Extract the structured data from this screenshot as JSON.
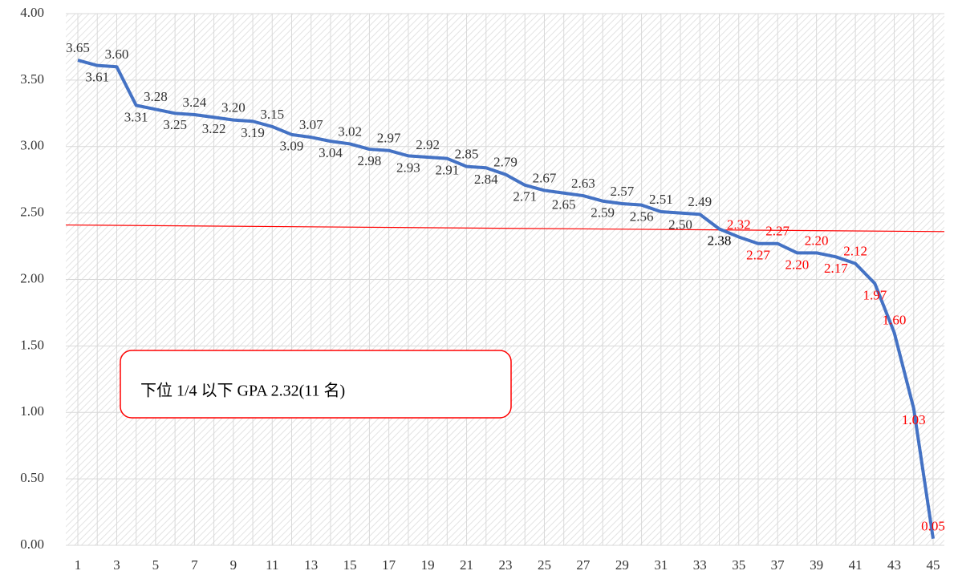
{
  "chart_data": {
    "type": "line",
    "categories": [
      "1",
      null,
      "3",
      null,
      "5",
      null,
      "7",
      null,
      "9",
      null,
      "11",
      null,
      "13",
      null,
      "15",
      null,
      "17",
      null,
      "19",
      null,
      "21",
      null,
      "23",
      null,
      "25",
      null,
      "27",
      null,
      "29",
      null,
      "31",
      null,
      "33",
      null,
      "35",
      null,
      "37",
      null,
      "39",
      null,
      "41",
      null,
      "43",
      null,
      "45"
    ],
    "series": [
      {
        "color": "#4472c4",
        "values": [
          3.65,
          3.61,
          3.6,
          3.31,
          3.28,
          3.25,
          3.24,
          3.22,
          3.2,
          3.19,
          3.15,
          3.09,
          3.07,
          3.04,
          3.02,
          2.98,
          2.97,
          2.93,
          2.92,
          2.91,
          2.85,
          2.84,
          2.79,
          2.71,
          2.67,
          2.65,
          2.63,
          2.59,
          2.57,
          2.56,
          2.51,
          2.5,
          2.49,
          2.38,
          2.32,
          2.27,
          2.27,
          2.2,
          2.2,
          2.17,
          2.12,
          1.97,
          1.6,
          1.03,
          0.05
        ],
        "value_labels": [
          "3.65",
          "3.61",
          "3.60",
          "3.31",
          "3.28",
          "3.25",
          "3.24",
          "3.22",
          "3.20",
          "3.19",
          "3.15",
          "3.09",
          "3.07",
          "3.04",
          "3.02",
          "2.98",
          "2.97",
          "2.93",
          "2.92",
          "2.91",
          "2.85",
          "2.84",
          "2.79",
          "2.71",
          "2.67",
          "2.65",
          "2.63",
          "2.59",
          "2.57",
          "2.56",
          "2.51",
          "2.50",
          "2.49",
          "2.38",
          "2.32",
          "2.27",
          "2.27",
          "2.20",
          "2.20",
          "2.17",
          "2.12",
          "1.97",
          "1.60",
          "1.03",
          "0.05"
        ],
        "value_label_colors": [
          "#333333",
          "#333333",
          "#333333",
          "#333333",
          "#333333",
          "#333333",
          "#333333",
          "#333333",
          "#333333",
          "#333333",
          "#333333",
          "#333333",
          "#333333",
          "#333333",
          "#333333",
          "#333333",
          "#333333",
          "#333333",
          "#333333",
          "#333333",
          "#333333",
          "#333333",
          "#333333",
          "#333333",
          "#333333",
          "#333333",
          "#333333",
          "#333333",
          "#333333",
          "#333333",
          "#333333",
          "#333333",
          "#333333",
          "#000000",
          "#ff0000",
          "#ff0000",
          "#ff0000",
          "#ff0000",
          "#ff0000",
          "#ff0000",
          "#ff0000",
          "#ff0000",
          "#ff0000",
          "#ff0000",
          "#ff0000"
        ]
      }
    ],
    "ylim": [
      0,
      4
    ],
    "yticks": [
      {
        "value": 0,
        "label": "0.00"
      },
      {
        "value": 0.5,
        "label": "0.50"
      },
      {
        "value": 1,
        "label": "1.00"
      },
      {
        "value": 1.5,
        "label": "1.50"
      },
      {
        "value": 2,
        "label": "2.00"
      },
      {
        "value": 2.5,
        "label": "2.50"
      },
      {
        "value": 3,
        "label": "3.00"
      },
      {
        "value": 3.5,
        "label": "3.50"
      },
      {
        "value": 4,
        "label": "4.00"
      }
    ],
    "grid": true,
    "threshold_line": {
      "start": 2.41,
      "end": 2.36,
      "color": "#ff0000"
    },
    "annotation": "下位 1/4 以下  GPA 2.32(11 名)"
  }
}
